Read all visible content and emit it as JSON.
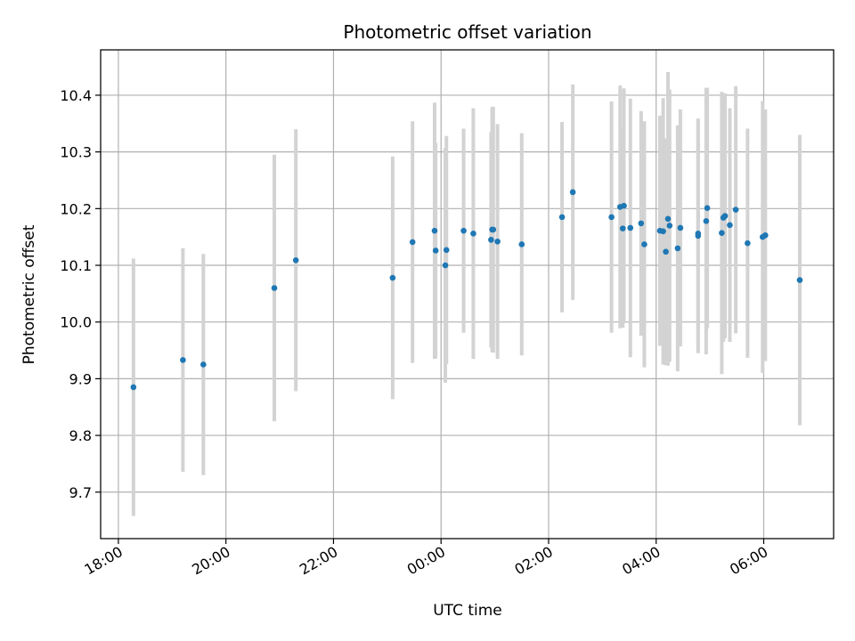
{
  "chart_data": {
    "type": "scatter",
    "title": "Photometric offset variation",
    "xlabel": "UTC time",
    "ylabel": "Photometric offset",
    "x_unit": "hours",
    "x_tick_values": [
      18,
      20,
      22,
      24,
      26,
      28,
      30
    ],
    "x_tick_labels": [
      "18:00",
      "20:00",
      "22:00",
      "00:00",
      "02:00",
      "04:00",
      "06:00"
    ],
    "y_tick_values": [
      9.7,
      9.8,
      9.9,
      10.0,
      10.1,
      10.2,
      10.3,
      10.4
    ],
    "y_tick_labels": [
      "9.7",
      "9.8",
      "9.9",
      "10.0",
      "10.1",
      "10.2",
      "10.3",
      "10.4"
    ],
    "xlim": [
      17.67,
      31.3
    ],
    "ylim": [
      9.618,
      10.48
    ],
    "grid": true,
    "colors": {
      "point": "#1f77b4",
      "errorbar": "#d3d3d3",
      "grid": "#b0b0b0",
      "axes": "#000000"
    },
    "series": [
      {
        "x": [
          18.28,
          19.2,
          19.58,
          20.9,
          21.3,
          23.1,
          23.47,
          23.88,
          23.9,
          24.08,
          24.1,
          24.42,
          24.6,
          24.93,
          24.95,
          24.97,
          25.05,
          25.5,
          26.25,
          26.45,
          27.17,
          27.33,
          27.38,
          27.4,
          27.52,
          27.72,
          27.78,
          28.07,
          28.13,
          28.18,
          28.22,
          28.25,
          28.4,
          28.45,
          28.78,
          28.78,
          28.93,
          28.95,
          29.22,
          29.25,
          29.28,
          29.37,
          29.48,
          29.7,
          29.98,
          30.03,
          30.67
        ],
        "y": [
          9.885,
          9.933,
          9.925,
          10.06,
          10.109,
          10.078,
          10.141,
          10.161,
          10.126,
          10.1,
          10.127,
          10.161,
          10.156,
          10.145,
          10.163,
          10.163,
          10.142,
          10.137,
          10.185,
          10.229,
          10.185,
          10.203,
          10.165,
          10.205,
          10.166,
          10.174,
          10.137,
          10.161,
          10.16,
          10.124,
          10.182,
          10.17,
          10.13,
          10.166,
          10.156,
          10.152,
          10.178,
          10.201,
          10.157,
          10.184,
          10.187,
          10.171,
          10.198,
          10.139,
          10.15,
          10.153,
          10.074
        ],
        "yerr": [
          0.227,
          0.197,
          0.195,
          0.235,
          0.231,
          0.214,
          0.213,
          0.226,
          0.19,
          0.207,
          0.201,
          0.18,
          0.221,
          0.19,
          0.216,
          0.217,
          0.207,
          0.196,
          0.168,
          0.19,
          0.204,
          0.214,
          0.175,
          0.207,
          0.228,
          0.198,
          0.217,
          0.203,
          0.235,
          0.2,
          0.259,
          0.24,
          0.217,
          0.209,
          0.2,
          0.207,
          0.235,
          0.212,
          0.249,
          0.219,
          0.216,
          0.206,
          0.218,
          0.202,
          0.24,
          0.222,
          0.256
        ]
      }
    ]
  }
}
